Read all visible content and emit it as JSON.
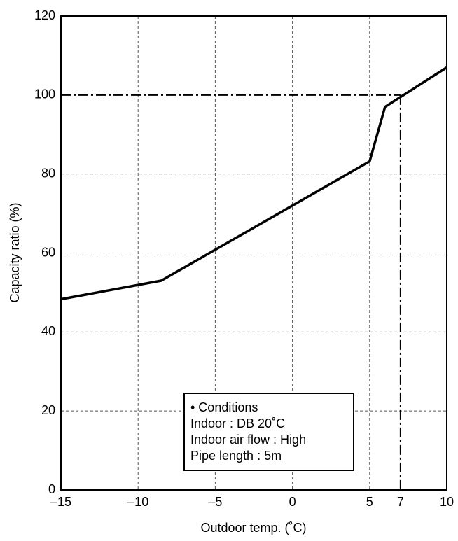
{
  "chart_data": {
    "type": "line",
    "x_label": "Outdoor temp. (˚C)",
    "y_label": "Capacity ratio (%)",
    "x": [
      -15,
      -8.5,
      5,
      6,
      10
    ],
    "values": [
      48.3,
      53,
      83.2,
      97,
      107
    ],
    "color": "#000000",
    "xlim": [
      -15,
      10
    ],
    "xticks": [
      {
        "value": -15,
        "label": "–15"
      },
      {
        "value": -10,
        "label": "–10"
      },
      {
        "value": -5,
        "label": "–5"
      },
      0,
      5,
      7,
      10
    ],
    "ylim": [
      0,
      120
    ],
    "yticks": [
      0,
      20,
      40,
      60,
      80,
      100,
      120
    ],
    "grid": true,
    "reference": {
      "x": 7,
      "y": 100
    },
    "annotation": [
      "• Conditions",
      "Indoor : DB 20˚C",
      "Indoor air flow : High",
      "Pipe length : 5m"
    ]
  }
}
